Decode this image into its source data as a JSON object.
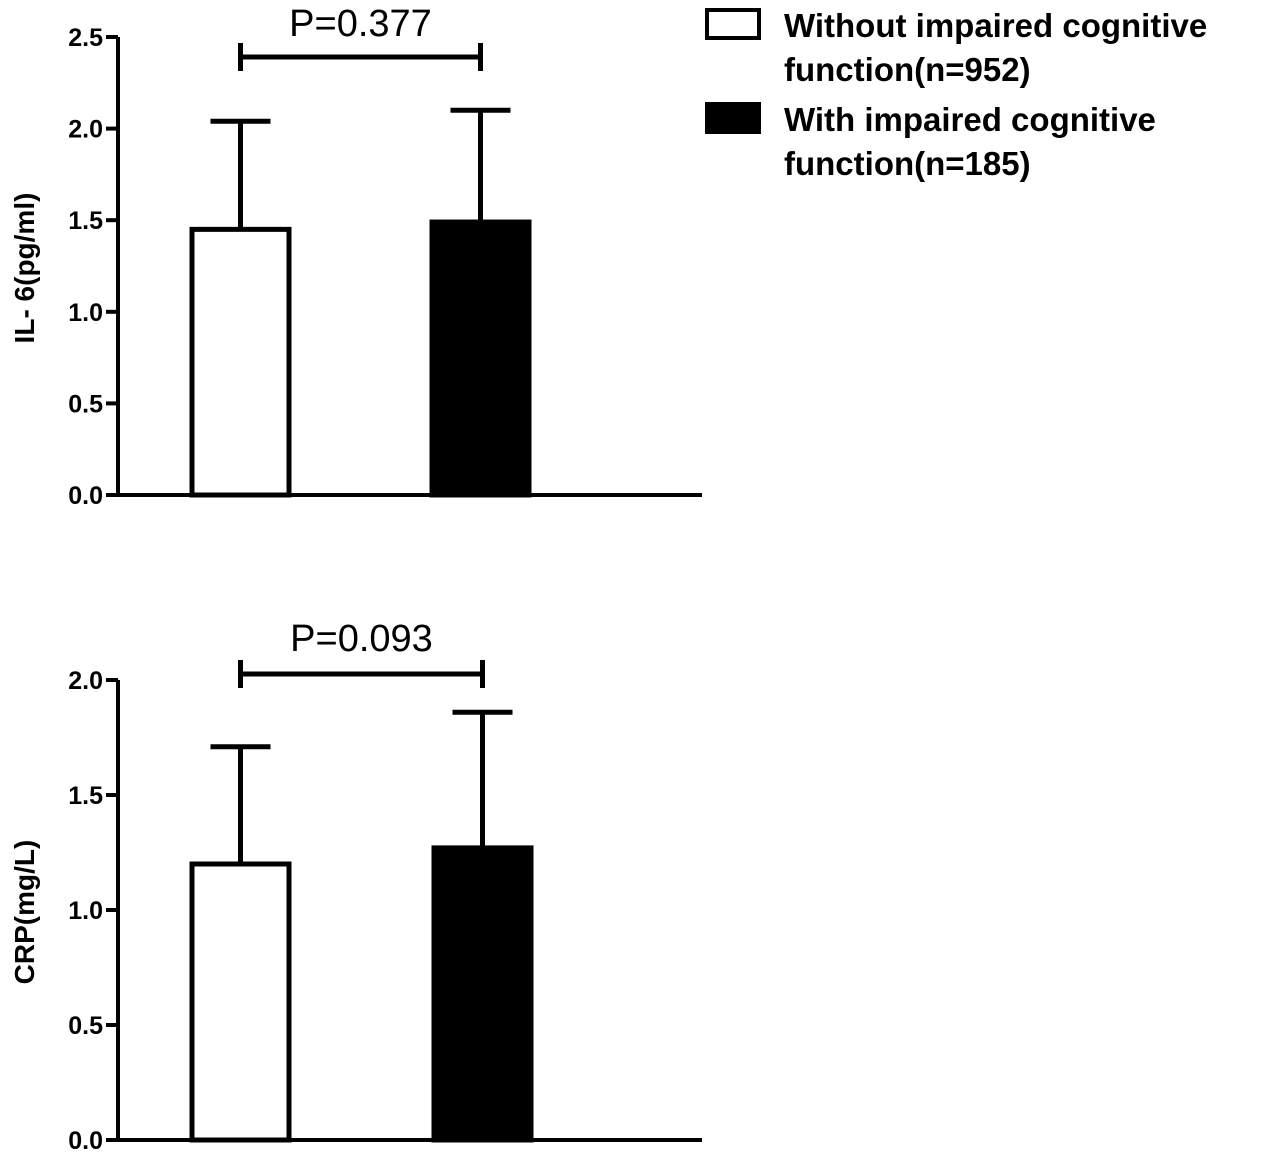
{
  "legend": {
    "items": [
      {
        "lines": [
          "Without impaired cognitive",
          "function(n=952)"
        ],
        "fill": "#ffffff"
      },
      {
        "lines": [
          "With impaired cognitive",
          "function(n=185)"
        ],
        "fill": "#000000"
      }
    ]
  },
  "chart_data": [
    {
      "type": "bar",
      "ylabel": "IL- 6(pg/ml)",
      "ylim": [
        0,
        2.5
      ],
      "yticks": [
        "0.0",
        "0.5",
        "1.0",
        "1.5",
        "2.0",
        "2.5"
      ],
      "series": [
        {
          "name": "Without impaired cognitive function(n=952)",
          "value": 1.45,
          "error": 0.59,
          "fill": "#ffffff"
        },
        {
          "name": "With impaired cognitive function(n=185)",
          "value": 1.49,
          "error": 0.61,
          "fill": "#000000"
        }
      ],
      "comparison": {
        "label": "P=0.377"
      }
    },
    {
      "type": "bar",
      "ylabel": "CRP(mg/L)",
      "ylim": [
        0,
        2.0
      ],
      "yticks": [
        "0.0",
        "0.5",
        "1.0",
        "1.5",
        "2.0"
      ],
      "series": [
        {
          "name": "Without impaired cognitive function(n=952)",
          "value": 1.2,
          "error": 0.51,
          "fill": "#ffffff"
        },
        {
          "name": "With impaired cognitive function(n=185)",
          "value": 1.27,
          "error": 0.59,
          "fill": "#000000"
        }
      ],
      "comparison": {
        "label": "P=0.093"
      }
    }
  ]
}
